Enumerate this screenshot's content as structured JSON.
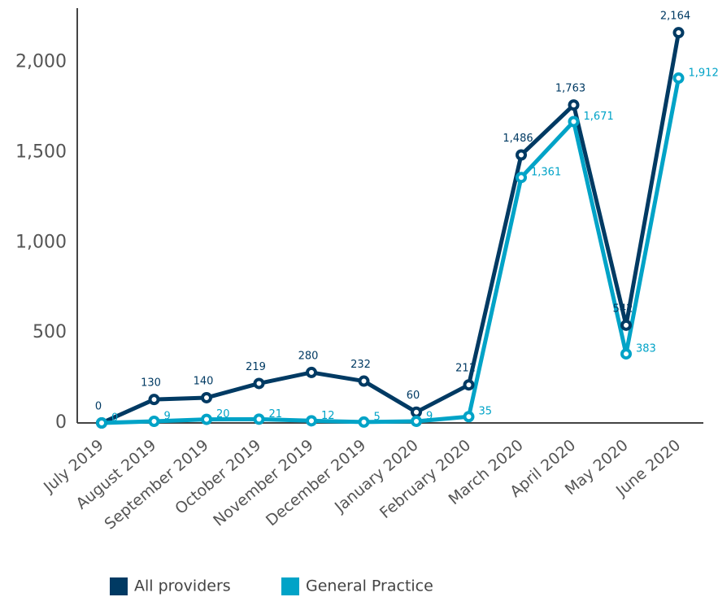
{
  "chart_data": {
    "type": "line",
    "categories": [
      "July 2019",
      "August 2019",
      "September 2019",
      "October 2019",
      "November 2019",
      "December 2019",
      "January 2020",
      "February 2020",
      "March 2020",
      "April 2020",
      "May 2020",
      "June 2020"
    ],
    "series": [
      {
        "name": "All providers",
        "color": "#003a63",
        "values": [
          0,
          130,
          140,
          219,
          280,
          232,
          60,
          211,
          1486,
          1763,
          542,
          2164
        ],
        "value_labels": [
          "0",
          "130",
          "140",
          "219",
          "280",
          "232",
          "60",
          "211",
          "1,486",
          "1,763",
          "542",
          "2,164"
        ]
      },
      {
        "name": "General Practice",
        "color": "#00a3c7",
        "values": [
          0,
          9,
          20,
          21,
          12,
          5,
          9,
          35,
          1361,
          1671,
          383,
          1912
        ],
        "value_labels": [
          "0",
          "9",
          "20",
          "21",
          "12",
          "5",
          "9",
          "35",
          "1,361",
          "1,671",
          "383",
          "1,912"
        ]
      }
    ],
    "ylim": [
      0,
      2300
    ],
    "yticks": [
      0,
      500,
      {
        "value": 1000,
        "label": "1,000"
      },
      {
        "value": 1500,
        "label": "1,500"
      },
      {
        "value": 2000,
        "label": "2,000"
      }
    ],
    "grid": false,
    "legend": "bottom"
  }
}
